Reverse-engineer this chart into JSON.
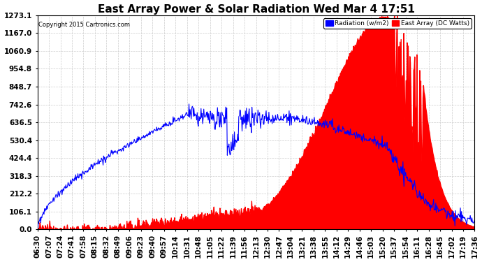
{
  "title": "East Array Power & Solar Radiation Wed Mar 4 17:51",
  "copyright": "Copyright 2015 Cartronics.com",
  "ymax": 1273.1,
  "yticks": [
    0.0,
    106.1,
    212.2,
    318.3,
    424.4,
    530.4,
    636.5,
    742.6,
    848.7,
    954.8,
    1060.9,
    1167.0,
    1273.1
  ],
  "xlabel_times": [
    "06:30",
    "07:07",
    "07:24",
    "07:41",
    "07:58",
    "08:15",
    "08:32",
    "08:49",
    "09:06",
    "09:23",
    "09:40",
    "09:57",
    "10:14",
    "10:31",
    "10:48",
    "11:05",
    "11:22",
    "11:39",
    "11:56",
    "12:13",
    "12:30",
    "12:47",
    "13:04",
    "13:21",
    "13:38",
    "13:55",
    "14:12",
    "14:29",
    "14:46",
    "15:03",
    "15:20",
    "15:37",
    "15:54",
    "16:11",
    "16:28",
    "16:45",
    "17:02",
    "17:19",
    "17:36"
  ],
  "background_color": "#ffffff",
  "grid_color": "#cccccc",
  "title_fontsize": 11,
  "axis_fontsize": 7.5,
  "red_fill_color": "#ff0000",
  "blue_line_color": "#0000ff"
}
